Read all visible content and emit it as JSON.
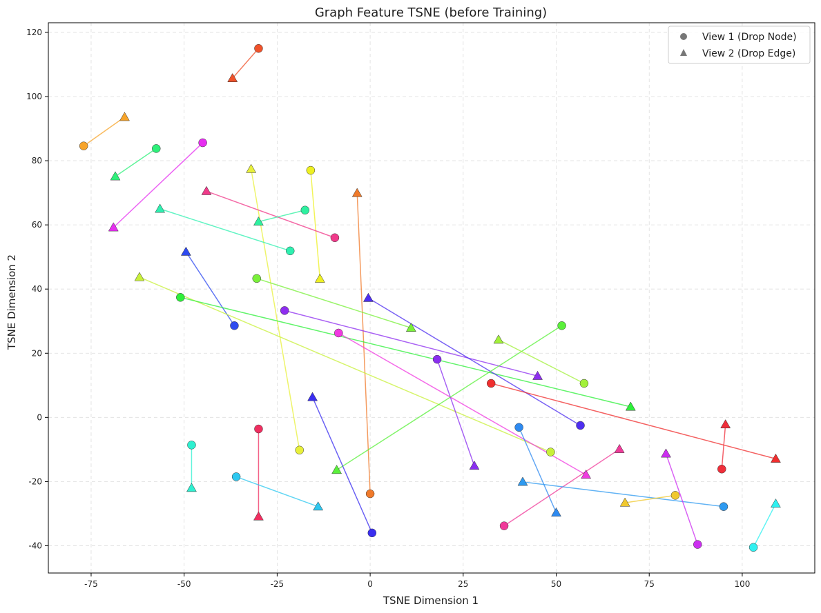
{
  "chart_data": {
    "type": "scatter",
    "title": "Graph Feature TSNE (before Training)",
    "xlabel": "TSNE Dimension 1",
    "ylabel": "TSNE Dimension 2",
    "xlim": [
      -86.5,
      119.5
    ],
    "ylim": [
      -48.5,
      123.0
    ],
    "xticks": [
      -75,
      -50,
      -25,
      0,
      25,
      50,
      75,
      100
    ],
    "yticks": [
      -40,
      -20,
      0,
      20,
      40,
      60,
      80,
      100,
      120
    ],
    "grid": true,
    "legend": {
      "position": "top-right",
      "entries": [
        {
          "label": "View 1 (Drop Node)",
          "marker": "circle"
        },
        {
          "label": "View 2 (Drop Edge)",
          "marker": "triangle"
        }
      ]
    },
    "pairs": [
      {
        "color": "#f0522a",
        "v1": [
          -30,
          115
        ],
        "v2": [
          -37,
          105.7
        ]
      },
      {
        "color": "#f7a42a",
        "v1": [
          -77,
          84.6
        ],
        "v2": [
          -66,
          93.6
        ]
      },
      {
        "color": "#2ef07a",
        "v1": [
          -57.5,
          83.8
        ],
        "v2": [
          -68.5,
          75.1
        ]
      },
      {
        "color": "#e62ef0",
        "v1": [
          -45,
          85.6
        ],
        "v2": [
          -69,
          59.2
        ]
      },
      {
        "color": "#eef022",
        "v1": [
          -16,
          77
        ],
        "v2": [
          -13.5,
          43.2
        ]
      },
      {
        "color": "#e8f03a",
        "v1": [
          -19,
          -10.2
        ],
        "v2": [
          -32,
          77.4
        ]
      },
      {
        "color": "#f07a2a",
        "v1": [
          0,
          -23.8
        ],
        "v2": [
          -3.5,
          69.9
        ]
      },
      {
        "color": "#f03a8a",
        "v1": [
          -9.5,
          56
        ],
        "v2": [
          -44,
          70.5
        ]
      },
      {
        "color": "#2ef0a0",
        "v1": [
          -17.5,
          64.6
        ],
        "v2": [
          -30,
          61
        ]
      },
      {
        "color": "#2ef0b0",
        "v1": [
          -21.5,
          51.9
        ],
        "v2": [
          -56.5,
          65
        ]
      },
      {
        "color": "#2e4af0",
        "v1": [
          -36.5,
          28.6
        ],
        "v2": [
          -49.5,
          51.6
        ]
      },
      {
        "color": "#c8f03a",
        "v1": [
          48.5,
          -10.8
        ],
        "v2": [
          -62,
          43.7
        ]
      },
      {
        "color": "#2ef03a",
        "v1": [
          -51,
          37.4
        ],
        "v2": [
          70,
          3.3
        ]
      },
      {
        "color": "#7af03a",
        "v1": [
          -30.5,
          43.3
        ],
        "v2": [
          11,
          27.9
        ]
      },
      {
        "color": "#8e2ef0",
        "v1": [
          -23,
          33.3
        ],
        "v2": [
          45,
          12.9
        ]
      },
      {
        "color": "#f03ae0",
        "v1": [
          -8.5,
          26.3
        ],
        "v2": [
          58,
          -17.9
        ]
      },
      {
        "color": "#4e2ef0",
        "v1": [
          56.5,
          -2.5
        ],
        "v2": [
          -0.5,
          37.2
        ]
      },
      {
        "color": "#8a2ef0",
        "v1": [
          18,
          18.1
        ],
        "v2": [
          28,
          -15.1
        ]
      },
      {
        "color": "#5af03a",
        "v1": [
          51.5,
          28.6
        ],
        "v2": [
          -9,
          -16.4
        ]
      },
      {
        "color": "#a2f03a",
        "v1": [
          57.5,
          10.6
        ],
        "v2": [
          34.5,
          24.2
        ]
      },
      {
        "color": "#f02e2e",
        "v1": [
          32.5,
          10.6
        ],
        "v2": [
          109,
          -12.9
        ]
      },
      {
        "color": "#2e8af0",
        "v1": [
          40,
          -3.1
        ],
        "v2": [
          50,
          -29.7
        ]
      },
      {
        "color": "#f03a9a",
        "v1": [
          36,
          -33.8
        ],
        "v2": [
          67,
          -9.9
        ]
      },
      {
        "color": "#2e9af0",
        "v1": [
          95,
          -27.8
        ],
        "v2": [
          41,
          -20.1
        ]
      },
      {
        "color": "#f0c82e",
        "v1": [
          82,
          -24.3
        ],
        "v2": [
          68.5,
          -26.6
        ]
      },
      {
        "color": "#cc2ef0",
        "v1": [
          88,
          -39.6
        ],
        "v2": [
          79.5,
          -11.3
        ]
      },
      {
        "color": "#f02e3a",
        "v1": [
          94.5,
          -16.1
        ],
        "v2": [
          95.5,
          -2.2
        ]
      },
      {
        "color": "#2ef0f0",
        "v1": [
          103,
          -40.5
        ],
        "v2": [
          109,
          -26.9
        ]
      },
      {
        "color": "#2ef0d0",
        "v1": [
          -48,
          -8.6
        ],
        "v2": [
          -48,
          -22
        ]
      },
      {
        "color": "#f02e60",
        "v1": [
          -30,
          -3.6
        ],
        "v2": [
          -30,
          -30.9
        ]
      },
      {
        "color": "#2ec8f0",
        "v1": [
          -36,
          -18.5
        ],
        "v2": [
          -14,
          -27.8
        ]
      },
      {
        "color": "#3a2ef0",
        "v1": [
          0.5,
          -36
        ],
        "v2": [
          -15.5,
          6.3
        ]
      }
    ]
  }
}
